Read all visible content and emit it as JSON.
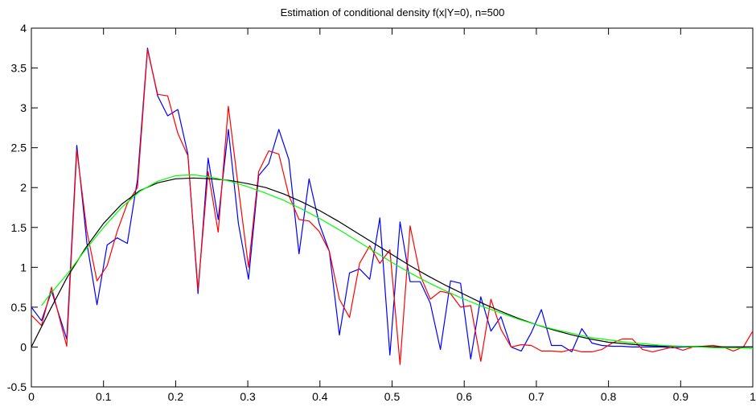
{
  "chart_data": {
    "type": "line",
    "title": "Estimation of conditional density f(x|Y=0), n=500",
    "xlabel": "",
    "ylabel": "",
    "xlim": [
      0,
      1
    ],
    "ylim": [
      -0.5,
      4
    ],
    "xticks": [
      0,
      0.1,
      0.2,
      0.3,
      0.4,
      0.5,
      0.6,
      0.7,
      0.8,
      0.9,
      1
    ],
    "yticks": [
      -0.5,
      0,
      0.5,
      1,
      1.5,
      2,
      2.5,
      3,
      3.5,
      4
    ],
    "grid": false,
    "legend": "none",
    "series": [
      {
        "color": "#0000ff",
        "x": [
          0,
          0.014,
          0.028,
          0.049,
          0.063,
          0.077,
          0.091,
          0.105,
          0.119,
          0.133,
          0.147,
          0.161,
          0.175,
          0.189,
          0.203,
          0.217,
          0.231,
          0.245,
          0.259,
          0.273,
          0.287,
          0.301,
          0.315,
          0.329,
          0.343,
          0.357,
          0.371,
          0.385,
          0.399,
          0.413,
          0.427,
          0.441,
          0.455,
          0.469,
          0.483,
          0.497,
          0.511,
          0.525,
          0.539,
          0.553,
          0.567,
          0.581,
          0.595,
          0.609,
          0.623,
          0.637,
          0.651,
          0.665,
          0.679,
          0.693,
          0.707,
          0.721,
          0.735,
          0.749,
          0.763,
          0.777,
          0.791,
          0.805,
          0.819,
          0.833,
          0.847,
          0.861,
          0.875,
          0.889,
          0.903,
          0.917,
          0.931,
          0.945,
          0.959,
          0.973,
          0.987,
          1
        ],
        "y": [
          0.5,
          0.33,
          0.7,
          0.1,
          2.53,
          1.3,
          0.53,
          1.28,
          1.37,
          1.3,
          2.1,
          3.75,
          3.15,
          2.9,
          2.98,
          2.42,
          0.67,
          2.37,
          1.6,
          2.73,
          1.55,
          0.85,
          2.15,
          2.3,
          2.73,
          2.35,
          1.17,
          2.11,
          1.55,
          1.2,
          0.15,
          0.93,
          0.98,
          0.85,
          1.62,
          -0.1,
          1.57,
          0.82,
          0.82,
          0.55,
          -0.03,
          0.83,
          0.8,
          -0.15,
          0.63,
          0.2,
          0.38,
          0.0,
          -0.05,
          0.18,
          0.47,
          0.02,
          0.02,
          -0.06,
          0.23,
          0.05,
          0.02,
          0.01,
          0.01,
          0.0,
          0.0,
          0.0,
          0.0,
          -0.01,
          0.0,
          0.0,
          0.0,
          0.0,
          0.0,
          0.0,
          0.0,
          0.0
        ]
      },
      {
        "color": "#ff0000",
        "x": [
          0,
          0.014,
          0.028,
          0.049,
          0.063,
          0.077,
          0.091,
          0.105,
          0.119,
          0.133,
          0.147,
          0.161,
          0.175,
          0.189,
          0.203,
          0.217,
          0.231,
          0.245,
          0.259,
          0.273,
          0.287,
          0.301,
          0.315,
          0.329,
          0.343,
          0.357,
          0.371,
          0.385,
          0.399,
          0.413,
          0.427,
          0.441,
          0.455,
          0.469,
          0.483,
          0.497,
          0.511,
          0.525,
          0.539,
          0.553,
          0.567,
          0.581,
          0.595,
          0.609,
          0.623,
          0.637,
          0.651,
          0.665,
          0.679,
          0.693,
          0.707,
          0.721,
          0.735,
          0.749,
          0.763,
          0.777,
          0.791,
          0.805,
          0.819,
          0.833,
          0.847,
          0.861,
          0.875,
          0.889,
          0.903,
          0.917,
          0.931,
          0.945,
          0.959,
          0.973,
          0.987,
          1
        ],
        "y": [
          0.4,
          0.27,
          0.75,
          0.01,
          2.47,
          1.45,
          0.83,
          1.02,
          1.45,
          1.8,
          2.0,
          3.73,
          3.17,
          3.15,
          2.68,
          2.4,
          0.72,
          2.2,
          1.44,
          3.02,
          2.0,
          1.0,
          2.2,
          2.46,
          2.42,
          1.9,
          1.6,
          1.58,
          1.45,
          1.2,
          0.6,
          0.37,
          1.05,
          1.27,
          1.05,
          1.22,
          -0.22,
          1.52,
          0.9,
          0.6,
          0.7,
          0.67,
          0.5,
          0.52,
          -0.18,
          0.6,
          0.22,
          0.0,
          0.03,
          0.02,
          -0.05,
          -0.05,
          -0.06,
          -0.03,
          -0.06,
          -0.06,
          -0.03,
          0.05,
          0.1,
          0.1,
          -0.03,
          -0.06,
          -0.03,
          0.0,
          -0.04,
          0.0,
          0.01,
          0.02,
          0.0,
          -0.05,
          0.0,
          0.2
        ]
      },
      {
        "color": "#000000",
        "x": [
          0,
          0.025,
          0.05,
          0.075,
          0.1,
          0.125,
          0.15,
          0.175,
          0.2,
          0.225,
          0.25,
          0.275,
          0.3,
          0.325,
          0.35,
          0.375,
          0.4,
          0.425,
          0.45,
          0.475,
          0.5,
          0.525,
          0.55,
          0.575,
          0.6,
          0.625,
          0.65,
          0.675,
          0.7,
          0.725,
          0.75,
          0.775,
          0.8,
          0.825,
          0.85,
          0.875,
          0.9,
          0.925,
          0.95,
          0.975,
          1
        ],
        "y": [
          0.0,
          0.45,
          0.88,
          1.24,
          1.55,
          1.79,
          1.96,
          2.06,
          2.11,
          2.12,
          2.11,
          2.09,
          2.05,
          2.0,
          1.92,
          1.82,
          1.71,
          1.58,
          1.44,
          1.3,
          1.16,
          1.02,
          0.89,
          0.77,
          0.66,
          0.55,
          0.45,
          0.36,
          0.28,
          0.21,
          0.15,
          0.1,
          0.06,
          0.04,
          0.02,
          0.01,
          0.01,
          0.005,
          0.0,
          0.0,
          0.0
        ]
      },
      {
        "color": "#00ff00",
        "x": [
          0.014,
          0.025,
          0.05,
          0.075,
          0.1,
          0.125,
          0.15,
          0.175,
          0.2,
          0.225,
          0.25,
          0.275,
          0.3,
          0.325,
          0.35,
          0.375,
          0.4,
          0.425,
          0.45,
          0.475,
          0.5,
          0.525,
          0.55,
          0.575,
          0.6,
          0.625,
          0.65,
          0.675,
          0.7,
          0.725,
          0.75,
          0.775,
          0.8,
          0.825,
          0.85,
          0.875,
          0.9,
          0.925,
          0.95,
          0.975,
          1
        ],
        "y": [
          0.52,
          0.65,
          0.92,
          1.22,
          1.5,
          1.75,
          1.95,
          2.08,
          2.15,
          2.16,
          2.13,
          2.08,
          2.01,
          1.93,
          1.84,
          1.73,
          1.61,
          1.48,
          1.34,
          1.2,
          1.06,
          0.93,
          0.81,
          0.7,
          0.6,
          0.51,
          0.43,
          0.35,
          0.28,
          0.22,
          0.17,
          0.12,
          0.09,
          0.06,
          0.04,
          0.02,
          0.01,
          0.0,
          -0.01,
          -0.01,
          -0.02
        ]
      }
    ]
  }
}
